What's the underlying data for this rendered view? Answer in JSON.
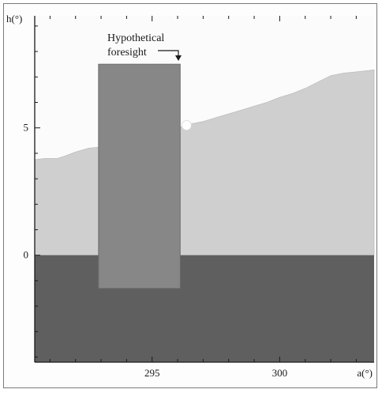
{
  "chart_data": {
    "type": "area",
    "title": "",
    "xlabel": "a(°)",
    "ylabel": "h(°)",
    "xlim": [
      290.4,
      303.7
    ],
    "ylim": [
      -4.2,
      9.4
    ],
    "xticks": [
      295,
      300
    ],
    "yticks": [
      0,
      5
    ],
    "xtick_labels": [
      "295",
      "300"
    ],
    "ytick_labels": [
      "0",
      "5"
    ],
    "grid": false,
    "below_horizon": {
      "y_from": -4.2,
      "y_to": 0,
      "color": "#5f5f5f"
    },
    "horizon_profile": {
      "x": [
        290.4,
        290.8,
        291.3,
        291.6,
        292.0,
        292.5,
        293.0,
        293.5,
        294.0,
        294.5,
        295.0,
        295.5,
        296.0,
        296.5,
        297.0,
        297.5,
        298.0,
        298.5,
        299.0,
        299.5,
        300.0,
        300.5,
        301.0,
        301.5,
        302.0,
        302.5,
        303.0,
        303.5,
        303.7
      ],
      "y": [
        3.75,
        3.8,
        3.8,
        3.9,
        4.05,
        4.2,
        4.25,
        4.35,
        4.5,
        4.6,
        4.75,
        4.85,
        5.0,
        5.15,
        5.25,
        5.4,
        5.55,
        5.7,
        5.85,
        6.0,
        6.2,
        6.35,
        6.55,
        6.8,
        7.05,
        7.15,
        7.2,
        7.25,
        7.28
      ],
      "color": "#cfcfcf"
    },
    "sun_marker": {
      "x": 296.35,
      "y": 5.1
    },
    "foresight_rectangle": {
      "x_from": 292.9,
      "x_to": 296.1,
      "y_from": -1.3,
      "y_to": 7.5,
      "color": "#878787"
    },
    "annotation": {
      "lines": [
        "Hypothetical",
        "foresight"
      ]
    }
  }
}
